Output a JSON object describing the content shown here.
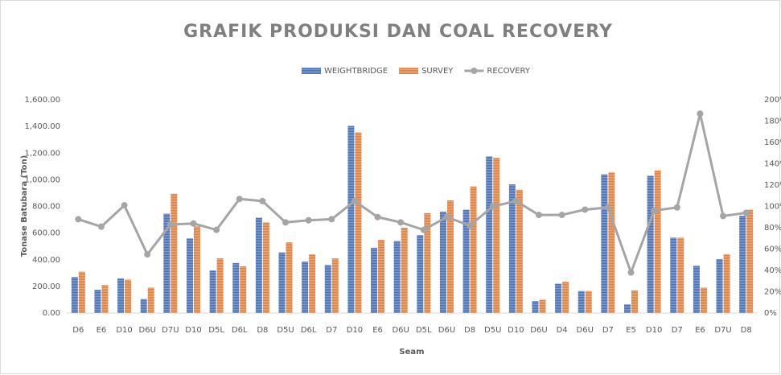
{
  "chart_data": {
    "type": "bar_line",
    "title": "GRAFIK PRODUKSI DAN COAL RECOVERY",
    "y_label": "Tonase Batubara (Ton)",
    "x_label": "Seam",
    "categories": [
      "D6",
      "E6",
      "D10",
      "D6U",
      "D7U",
      "D10",
      "D5L",
      "D6L",
      "D8",
      "D5U",
      "D6L",
      "D7",
      "D10",
      "E6",
      "D6U",
      "D5L",
      "D6U",
      "D8",
      "D5U",
      "D10",
      "D6U",
      "D4",
      "D6U",
      "D7",
      "E5",
      "D10",
      "D7",
      "E6",
      "D7U",
      "D8"
    ],
    "series": [
      {
        "name": "WEIGHTBRIDGE",
        "type": "bar",
        "color": "#4472c4",
        "values": [
          270,
          175,
          260,
          105,
          745,
          560,
          320,
          375,
          715,
          455,
          385,
          360,
          1405,
          490,
          540,
          585,
          760,
          775,
          1175,
          965,
          90,
          220,
          165,
          1040,
          65,
          1030,
          565,
          355,
          405,
          730
        ]
      },
      {
        "name": "SURVEY",
        "type": "bar",
        "color": "#ed7d31",
        "values": [
          310,
          210,
          250,
          190,
          895,
          650,
          410,
          350,
          680,
          530,
          440,
          410,
          1355,
          550,
          640,
          750,
          845,
          950,
          1165,
          925,
          100,
          235,
          165,
          1055,
          170,
          1070,
          565,
          190,
          440,
          775
        ]
      },
      {
        "name": "RECOVERY",
        "type": "line",
        "axis": "y2",
        "color": "#a5a5a5",
        "values": [
          88,
          81,
          101,
          55,
          83,
          84,
          78,
          107,
          105,
          85,
          87,
          88,
          105,
          90,
          85,
          78,
          90,
          82,
          100,
          105,
          92,
          92,
          97,
          99,
          38,
          96,
          99,
          187,
          91,
          94
        ]
      }
    ],
    "ylim": [
      0,
      1600
    ],
    "yticks": [
      {
        "value": 0,
        "label": "0.00"
      },
      {
        "value": 200,
        "label": "200.00"
      },
      {
        "value": 400,
        "label": "400.00"
      },
      {
        "value": 600,
        "label": "600.00"
      },
      {
        "value": 800,
        "label": "800.00"
      },
      {
        "value": 1000,
        "label": "1,000.00"
      },
      {
        "value": 1200,
        "label": "1,200.00"
      },
      {
        "value": 1400,
        "label": "1,400.00"
      },
      {
        "value": 1600,
        "label": "1,600.00"
      }
    ],
    "y2lim": [
      0,
      200
    ],
    "y2ticks": [
      {
        "value": 0,
        "label": "0%"
      },
      {
        "value": 20,
        "label": "20%"
      },
      {
        "value": 40,
        "label": "40%"
      },
      {
        "value": 60,
        "label": "60%"
      },
      {
        "value": 80,
        "label": "80%"
      },
      {
        "value": 100,
        "label": "100%"
      },
      {
        "value": 120,
        "label": "120%"
      },
      {
        "value": 140,
        "label": "140%"
      },
      {
        "value": 160,
        "label": "160%"
      },
      {
        "value": 180,
        "label": "180%"
      },
      {
        "value": 200,
        "label": "200%"
      }
    ],
    "grid": false,
    "legend": "top"
  }
}
